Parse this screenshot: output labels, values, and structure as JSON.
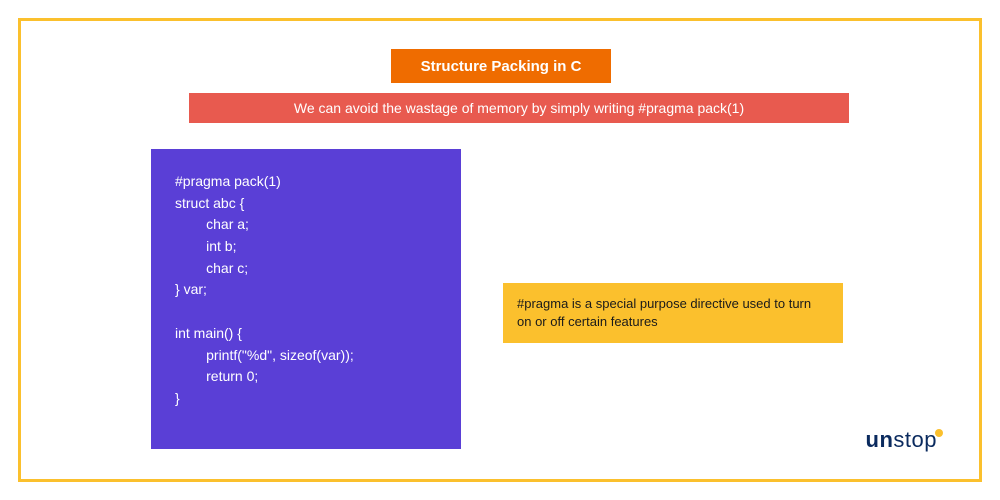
{
  "colors": {
    "border": "#fbc02d",
    "title_bg": "#ef6c00",
    "subtitle_bg": "#e85a4f",
    "code_bg": "#5a3fd6",
    "note_bg": "#fbc02d",
    "white": "#ffffff",
    "logo_text": "#0a2a5e"
  },
  "title": "Structure Packing in C",
  "subtitle": "We can avoid the wastage of memory by simply writing #pragma pack(1)",
  "code": "#pragma pack(1)\nstruct abc {\n        char a;\n        int b;\n        char c;\n} var;\n\nint main() {\n        printf(\"%d\", sizeof(var));\n        return 0;\n}",
  "note": "#pragma is a special purpose directive used to turn on or off certain features",
  "logo": {
    "part1": "un",
    "part2": "stop"
  }
}
